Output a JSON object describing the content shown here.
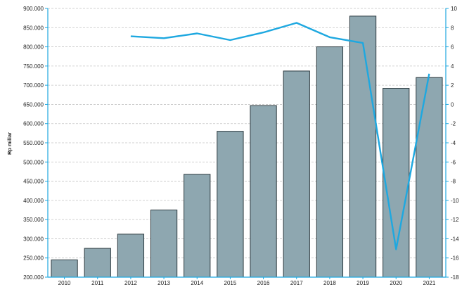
{
  "chart_data": {
    "type": "bar",
    "title": "",
    "xlabel": "",
    "ylabel": "Rp miliar",
    "categories": [
      "2010",
      "2011",
      "2012",
      "2013",
      "2014",
      "2015",
      "2016",
      "2017",
      "2018",
      "2019",
      "2020",
      "2021"
    ],
    "ylim": [
      200000,
      900000
    ],
    "y_ticks": [
      "200.000",
      "250.000",
      "300.000",
      "350.000",
      "400.000",
      "450.000",
      "500.000",
      "550.000",
      "600.000",
      "650.000",
      "700.000",
      "750.000",
      "800.000",
      "850.000",
      "900.000"
    ],
    "y2lim": [
      -18,
      10
    ],
    "y2_ticks": [
      "-18",
      "-16",
      "-14",
      "-12",
      "-10",
      "-8",
      "-6",
      "-4",
      "-2",
      "0",
      "2",
      "4",
      "6",
      "8",
      "10"
    ],
    "grid": true,
    "series": [
      {
        "type": "bar",
        "axis": "left",
        "color": "#8ea7b0",
        "values": [
          245000,
          275000,
          312000,
          375000,
          468000,
          580000,
          647000,
          737000,
          800000,
          880000,
          692000,
          720000
        ]
      },
      {
        "type": "line",
        "axis": "right",
        "color": "#1ea8e0",
        "values": [
          null,
          null,
          7.1,
          6.9,
          7.4,
          6.7,
          7.5,
          8.5,
          7.0,
          6.4,
          -15.1,
          3.2
        ]
      }
    ]
  }
}
